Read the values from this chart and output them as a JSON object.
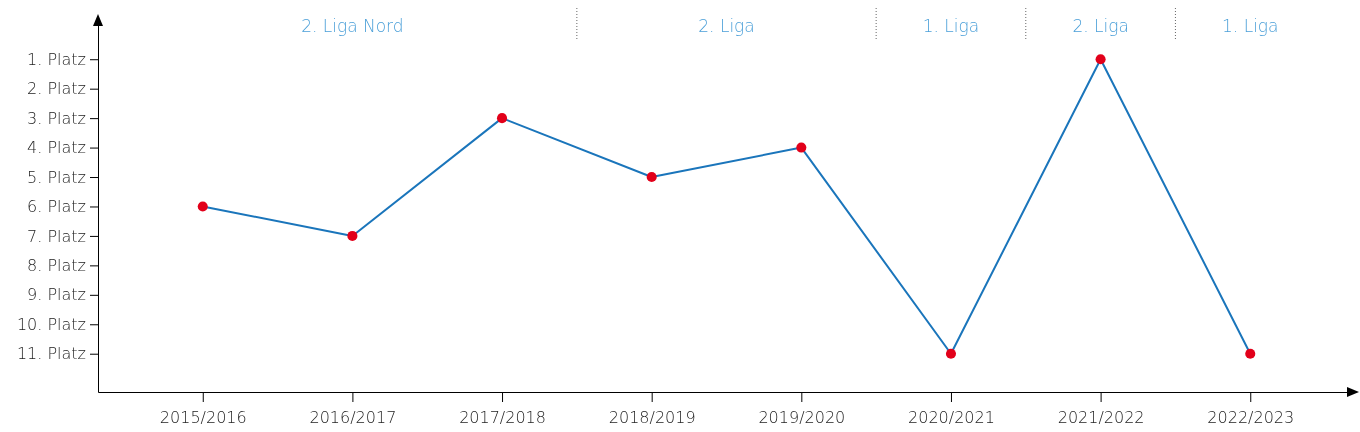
{
  "chart_data": {
    "type": "line",
    "categories": [
      "2015/2016",
      "2016/2017",
      "2017/2018",
      "2018/2019",
      "2019/2020",
      "2020/2021",
      "2021/2022",
      "2022/2023"
    ],
    "series": [
      {
        "color": "#1a75bb",
        "values": [
          6,
          7,
          3,
          5,
          4,
          11,
          1,
          11
        ]
      }
    ],
    "marker": "circle",
    "ylim": [
      12.3,
      -0.4
    ],
    "yticks": [
      {
        "value": 1,
        "label": "1. Platz"
      },
      {
        "value": 2,
        "label": "2. Platz"
      },
      {
        "value": 3,
        "label": "3. Platz"
      },
      {
        "value": 4,
        "label": "4. Platz"
      },
      {
        "value": 5,
        "label": "5. Platz"
      },
      {
        "value": 6,
        "label": "6. Platz"
      },
      {
        "value": 7,
        "label": "7. Platz"
      },
      {
        "value": 8,
        "label": "8. Platz"
      },
      {
        "value": 9,
        "label": "9. Platz"
      },
      {
        "value": 10,
        "label": "10. Platz"
      },
      {
        "value": 11,
        "label": "11. Platz"
      }
    ],
    "annotations": [
      "2. Liga Nord",
      "2. Liga",
      "1. Liga",
      "2. Liga",
      "1. Liga"
    ]
  }
}
